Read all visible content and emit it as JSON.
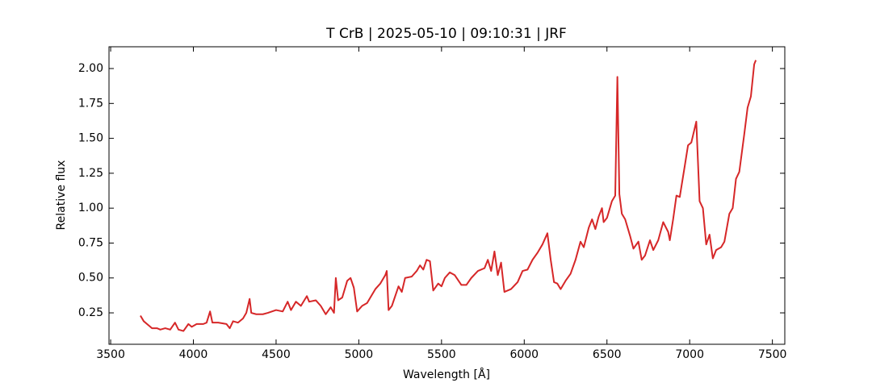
{
  "chart_data": {
    "type": "line",
    "title": "T CrB | 2025-05-10 | 09:10:31 | JRF",
    "x_label": "Wavelength [Å]",
    "y_label": "Relative flux",
    "color": "#d62728",
    "xlim": [
      3490,
      7575
    ],
    "ylim": [
      0.025,
      2.156
    ],
    "xticks": [
      3500,
      4000,
      4500,
      5000,
      5500,
      6000,
      6500,
      7000,
      7500
    ],
    "yticks": [
      0.25,
      {
        "value": 0.5,
        "label": "0.50"
      },
      0.75,
      {
        "value": 1,
        "label": "1.00"
      },
      1.25,
      {
        "value": 1.5,
        "label": "1.50"
      },
      1.75,
      {
        "value": 2,
        "label": "2.00"
      }
    ],
    "x": [
      3680,
      3700,
      3730,
      3750,
      3780,
      3800,
      3830,
      3860,
      3889,
      3910,
      3940,
      3970,
      3990,
      4020,
      4060,
      4080,
      4101,
      4115,
      4150,
      4200,
      4220,
      4240,
      4270,
      4300,
      4320,
      4340,
      4350,
      4380,
      4420,
      4450,
      4500,
      4540,
      4570,
      4590,
      4620,
      4650,
      4686,
      4700,
      4740,
      4770,
      4800,
      4830,
      4850,
      4861,
      4875,
      4900,
      4930,
      4950,
      4970,
      4990,
      5020,
      5050,
      5080,
      5100,
      5130,
      5160,
      5169,
      5180,
      5200,
      5240,
      5260,
      5280,
      5320,
      5350,
      5370,
      5390,
      5410,
      5430,
      5450,
      5480,
      5500,
      5520,
      5550,
      5580,
      5620,
      5650,
      5680,
      5720,
      5760,
      5780,
      5800,
      5820,
      5840,
      5860,
      5880,
      5920,
      5960,
      5990,
      6020,
      6050,
      6080,
      6110,
      6140,
      6160,
      6180,
      6200,
      6220,
      6250,
      6280,
      6310,
      6340,
      6360,
      6390,
      6410,
      6430,
      6450,
      6470,
      6480,
      6500,
      6530,
      6550,
      6563,
      6575,
      6590,
      6610,
      6640,
      6660,
      6690,
      6710,
      6730,
      6760,
      6780,
      6810,
      6840,
      6870,
      6880,
      6900,
      6920,
      6940,
      6970,
      6990,
      7010,
      7040,
      7060,
      7080,
      7100,
      7120,
      7140,
      7160,
      7190,
      7210,
      7240,
      7260,
      7280,
      7300,
      7330,
      7350,
      7370,
      7390,
      7400
    ],
    "values": [
      0.23,
      0.19,
      0.16,
      0.14,
      0.14,
      0.13,
      0.14,
      0.13,
      0.18,
      0.13,
      0.12,
      0.17,
      0.15,
      0.17,
      0.17,
      0.18,
      0.26,
      0.18,
      0.18,
      0.17,
      0.14,
      0.19,
      0.18,
      0.21,
      0.25,
      0.35,
      0.25,
      0.24,
      0.24,
      0.25,
      0.27,
      0.26,
      0.33,
      0.27,
      0.33,
      0.3,
      0.37,
      0.33,
      0.34,
      0.3,
      0.24,
      0.29,
      0.25,
      0.5,
      0.34,
      0.36,
      0.48,
      0.5,
      0.43,
      0.26,
      0.3,
      0.32,
      0.38,
      0.42,
      0.46,
      0.52,
      0.55,
      0.27,
      0.3,
      0.44,
      0.4,
      0.5,
      0.51,
      0.55,
      0.59,
      0.56,
      0.63,
      0.62,
      0.41,
      0.46,
      0.44,
      0.5,
      0.54,
      0.52,
      0.45,
      0.45,
      0.5,
      0.55,
      0.57,
      0.63,
      0.55,
      0.69,
      0.52,
      0.61,
      0.4,
      0.42,
      0.47,
      0.55,
      0.56,
      0.63,
      0.68,
      0.74,
      0.82,
      0.63,
      0.47,
      0.46,
      0.42,
      0.48,
      0.53,
      0.63,
      0.76,
      0.72,
      0.86,
      0.92,
      0.85,
      0.94,
      1.0,
      0.9,
      0.93,
      1.05,
      1.09,
      1.94,
      1.1,
      0.96,
      0.92,
      0.8,
      0.71,
      0.76,
      0.63,
      0.66,
      0.77,
      0.7,
      0.77,
      0.9,
      0.83,
      0.77,
      0.92,
      1.09,
      1.08,
      1.3,
      1.45,
      1.47,
      1.62,
      1.05,
      1.0,
      0.74,
      0.81,
      0.64,
      0.7,
      0.72,
      0.76,
      0.96,
      1.0,
      1.21,
      1.26,
      1.53,
      1.72,
      1.8,
      2.03,
      2.06
    ]
  }
}
